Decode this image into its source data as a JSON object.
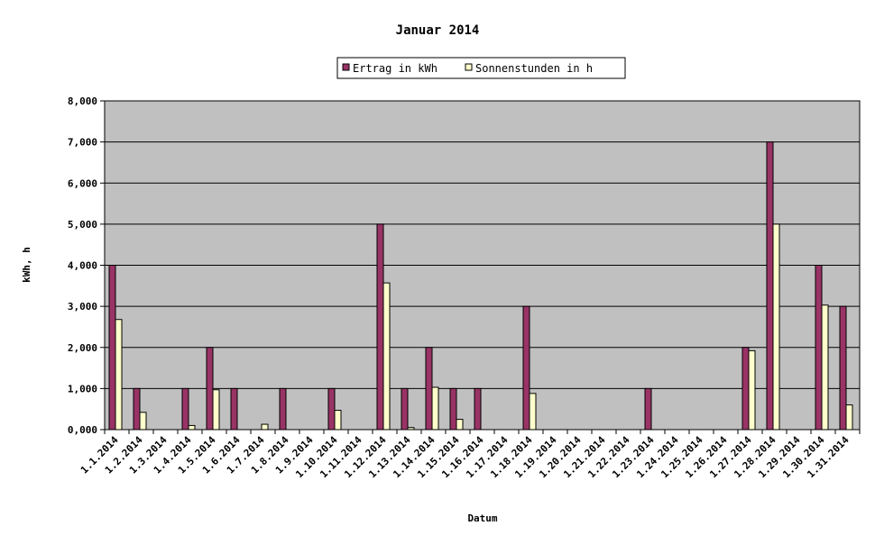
{
  "chart_data": {
    "type": "bar",
    "title": "Januar 2014",
    "xlabel": "Datum",
    "ylabel": "kWh, h",
    "ylim": [
      0,
      8
    ],
    "yticks": [
      0,
      1,
      2,
      3,
      4,
      5,
      6,
      7,
      8
    ],
    "ytick_labels": [
      "0,000",
      "1,000",
      "2,000",
      "3,000",
      "4,000",
      "5,000",
      "6,000",
      "7,000",
      "8,000"
    ],
    "grid": true,
    "legend_position": "top-center",
    "categories": [
      "1.1.2014",
      "1.2.2014",
      "1.3.2014",
      "1.4.2014",
      "1.5.2014",
      "1.6.2014",
      "1.7.2014",
      "1.8.2014",
      "1.9.2014",
      "1.10.2014",
      "1.11.2014",
      "1.12.2014",
      "1.13.2014",
      "1.14.2014",
      "1.15.2014",
      "1.16.2014",
      "1.17.2014",
      "1.18.2014",
      "1.19.2014",
      "1.20.2014",
      "1.21.2014",
      "1.22.2014",
      "1.23.2014",
      "1.24.2014",
      "1.25.2014",
      "1.26.2014",
      "1.27.2014",
      "1.28.2014",
      "1.29.2014",
      "1.30.2014",
      "1.31.2014"
    ],
    "series": [
      {
        "name": "Ertrag in kWh",
        "color": "#993366",
        "values": [
          4,
          1,
          0,
          1,
          2,
          1,
          0,
          1,
          0,
          1,
          0,
          5,
          1,
          2,
          1,
          1,
          0,
          3,
          0,
          0,
          0,
          0,
          1,
          0,
          0,
          0,
          2,
          7,
          0,
          4,
          3
        ]
      },
      {
        "name": "Sonnenstunden in h",
        "color": "#FFFFCC",
        "values": [
          2.68,
          0.42,
          0,
          0.1,
          0.97,
          0,
          0.13,
          0,
          0,
          0.47,
          0,
          3.57,
          0.05,
          1.03,
          0.25,
          0,
          0,
          0.88,
          0,
          0,
          0,
          0,
          0,
          0,
          0,
          0,
          1.92,
          5.0,
          0,
          3.03,
          0.6
        ]
      }
    ],
    "plot_background": "#C0C0C0"
  }
}
